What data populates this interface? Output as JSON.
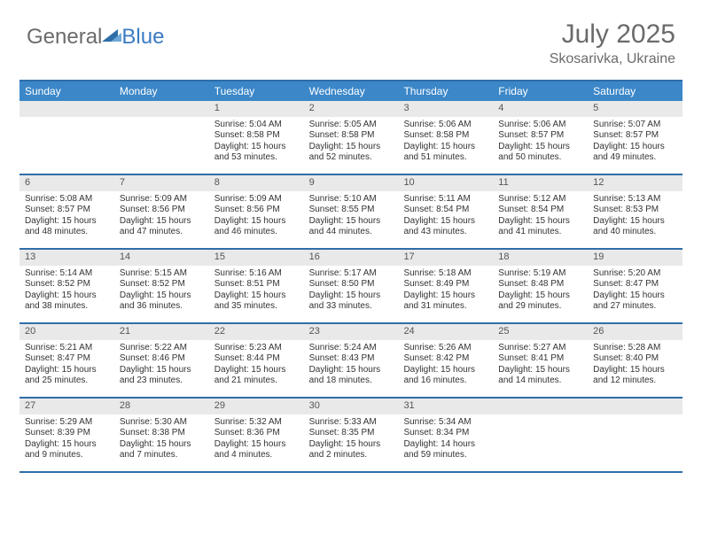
{
  "logo": {
    "text1": "General",
    "text2": "Blue"
  },
  "title": "July 2025",
  "location": "Skosarivka, Ukraine",
  "colors": {
    "header_bg": "#3b87c8",
    "header_text": "#ffffff",
    "border": "#2f6ea8",
    "daynum_bg": "#e9e9e9",
    "logo_gray": "#6b6b6b",
    "logo_blue": "#3b7bc2"
  },
  "days_of_week": [
    "Sunday",
    "Monday",
    "Tuesday",
    "Wednesday",
    "Thursday",
    "Friday",
    "Saturday"
  ],
  "weeks": [
    [
      null,
      null,
      {
        "n": "1",
        "sr": "5:04 AM",
        "ss": "8:58 PM",
        "dl": "15 hours and 53 minutes."
      },
      {
        "n": "2",
        "sr": "5:05 AM",
        "ss": "8:58 PM",
        "dl": "15 hours and 52 minutes."
      },
      {
        "n": "3",
        "sr": "5:06 AM",
        "ss": "8:58 PM",
        "dl": "15 hours and 51 minutes."
      },
      {
        "n": "4",
        "sr": "5:06 AM",
        "ss": "8:57 PM",
        "dl": "15 hours and 50 minutes."
      },
      {
        "n": "5",
        "sr": "5:07 AM",
        "ss": "8:57 PM",
        "dl": "15 hours and 49 minutes."
      }
    ],
    [
      {
        "n": "6",
        "sr": "5:08 AM",
        "ss": "8:57 PM",
        "dl": "15 hours and 48 minutes."
      },
      {
        "n": "7",
        "sr": "5:09 AM",
        "ss": "8:56 PM",
        "dl": "15 hours and 47 minutes."
      },
      {
        "n": "8",
        "sr": "5:09 AM",
        "ss": "8:56 PM",
        "dl": "15 hours and 46 minutes."
      },
      {
        "n": "9",
        "sr": "5:10 AM",
        "ss": "8:55 PM",
        "dl": "15 hours and 44 minutes."
      },
      {
        "n": "10",
        "sr": "5:11 AM",
        "ss": "8:54 PM",
        "dl": "15 hours and 43 minutes."
      },
      {
        "n": "11",
        "sr": "5:12 AM",
        "ss": "8:54 PM",
        "dl": "15 hours and 41 minutes."
      },
      {
        "n": "12",
        "sr": "5:13 AM",
        "ss": "8:53 PM",
        "dl": "15 hours and 40 minutes."
      }
    ],
    [
      {
        "n": "13",
        "sr": "5:14 AM",
        "ss": "8:52 PM",
        "dl": "15 hours and 38 minutes."
      },
      {
        "n": "14",
        "sr": "5:15 AM",
        "ss": "8:52 PM",
        "dl": "15 hours and 36 minutes."
      },
      {
        "n": "15",
        "sr": "5:16 AM",
        "ss": "8:51 PM",
        "dl": "15 hours and 35 minutes."
      },
      {
        "n": "16",
        "sr": "5:17 AM",
        "ss": "8:50 PM",
        "dl": "15 hours and 33 minutes."
      },
      {
        "n": "17",
        "sr": "5:18 AM",
        "ss": "8:49 PM",
        "dl": "15 hours and 31 minutes."
      },
      {
        "n": "18",
        "sr": "5:19 AM",
        "ss": "8:48 PM",
        "dl": "15 hours and 29 minutes."
      },
      {
        "n": "19",
        "sr": "5:20 AM",
        "ss": "8:47 PM",
        "dl": "15 hours and 27 minutes."
      }
    ],
    [
      {
        "n": "20",
        "sr": "5:21 AM",
        "ss": "8:47 PM",
        "dl": "15 hours and 25 minutes."
      },
      {
        "n": "21",
        "sr": "5:22 AM",
        "ss": "8:46 PM",
        "dl": "15 hours and 23 minutes."
      },
      {
        "n": "22",
        "sr": "5:23 AM",
        "ss": "8:44 PM",
        "dl": "15 hours and 21 minutes."
      },
      {
        "n": "23",
        "sr": "5:24 AM",
        "ss": "8:43 PM",
        "dl": "15 hours and 18 minutes."
      },
      {
        "n": "24",
        "sr": "5:26 AM",
        "ss": "8:42 PM",
        "dl": "15 hours and 16 minutes."
      },
      {
        "n": "25",
        "sr": "5:27 AM",
        "ss": "8:41 PM",
        "dl": "15 hours and 14 minutes."
      },
      {
        "n": "26",
        "sr": "5:28 AM",
        "ss": "8:40 PM",
        "dl": "15 hours and 12 minutes."
      }
    ],
    [
      {
        "n": "27",
        "sr": "5:29 AM",
        "ss": "8:39 PM",
        "dl": "15 hours and 9 minutes."
      },
      {
        "n": "28",
        "sr": "5:30 AM",
        "ss": "8:38 PM",
        "dl": "15 hours and 7 minutes."
      },
      {
        "n": "29",
        "sr": "5:32 AM",
        "ss": "8:36 PM",
        "dl": "15 hours and 4 minutes."
      },
      {
        "n": "30",
        "sr": "5:33 AM",
        "ss": "8:35 PM",
        "dl": "15 hours and 2 minutes."
      },
      {
        "n": "31",
        "sr": "5:34 AM",
        "ss": "8:34 PM",
        "dl": "14 hours and 59 minutes."
      },
      null,
      null
    ]
  ],
  "labels": {
    "sunrise": "Sunrise:",
    "sunset": "Sunset:",
    "daylight": "Daylight:"
  }
}
